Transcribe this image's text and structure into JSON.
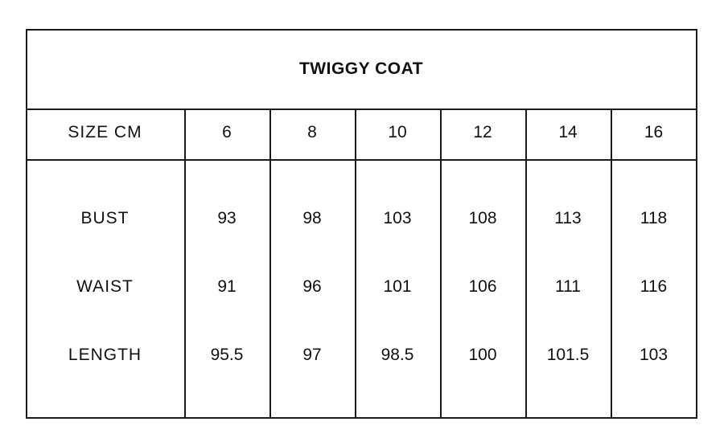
{
  "title": "TWIGGY COAT",
  "header": {
    "label": "SIZE CM",
    "sizes": [
      "6",
      "8",
      "10",
      "12",
      "14",
      "16"
    ]
  },
  "rows": [
    {
      "label": "BUST",
      "values": [
        "93",
        "98",
        "103",
        "108",
        "113",
        "118"
      ]
    },
    {
      "label": "WAIST",
      "values": [
        "91",
        "96",
        "101",
        "106",
        "111",
        "116"
      ]
    },
    {
      "label": "LENGTH",
      "values": [
        "95.5",
        "97",
        "98.5",
        "100",
        "101.5",
        "103"
      ]
    }
  ]
}
